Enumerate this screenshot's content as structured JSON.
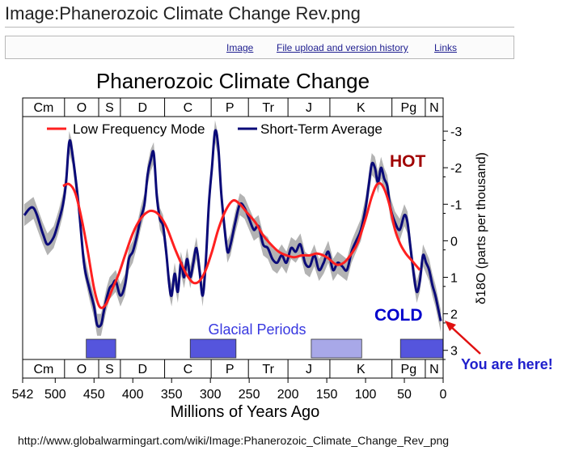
{
  "page": {
    "title": "Image:Phanerozoic Climate Change Rev.png",
    "tabs": [
      {
        "label": "Image"
      },
      {
        "label": "File upload and version history"
      },
      {
        "label": "Links"
      }
    ],
    "source_url": "http://www.globalwarmingart.com/wiki/Image:Phanerozoic_Climate_Change_Rev_png"
  },
  "chart_data": {
    "type": "line",
    "title": "Phanerozoic Climate Change",
    "xlabel": "Millions of Years Ago",
    "ylabel": "δ18O (parts per thousand)",
    "xlim": [
      542,
      0
    ],
    "ylim": [
      -3.4,
      3.25
    ],
    "xticks": [
      542,
      500,
      450,
      400,
      350,
      300,
      250,
      200,
      150,
      100,
      50,
      0
    ],
    "yticks": [
      -3,
      -2,
      -1,
      0,
      1,
      2,
      3
    ],
    "legend": {
      "placement": "top",
      "entries": [
        {
          "name": "Low Frequency Mode",
          "color": "#ff2020"
        },
        {
          "name": "Short-Term Average",
          "color": "#0a0a78"
        }
      ]
    },
    "periods": [
      {
        "label": "Cm",
        "start": 542,
        "end": 488
      },
      {
        "label": "O",
        "start": 488,
        "end": 444
      },
      {
        "label": "S",
        "start": 444,
        "end": 416
      },
      {
        "label": "D",
        "start": 416,
        "end": 359
      },
      {
        "label": "C",
        "start": 359,
        "end": 299
      },
      {
        "label": "P",
        "start": 299,
        "end": 251
      },
      {
        "label": "Tr",
        "start": 251,
        "end": 200
      },
      {
        "label": "J",
        "start": 200,
        "end": 146
      },
      {
        "label": "K",
        "start": 146,
        "end": 66
      },
      {
        "label": "Pg",
        "start": 66,
        "end": 23
      },
      {
        "label": "N",
        "start": 23,
        "end": 0
      }
    ],
    "glacial": {
      "label": "Glacial Periods",
      "periods": [
        {
          "start": 460,
          "end": 422,
          "color": "#5555dd"
        },
        {
          "start": 326,
          "end": 267,
          "color": "#5555dd"
        },
        {
          "start": 170,
          "end": 105,
          "color": "#a8a8e8"
        },
        {
          "start": 55,
          "end": 0,
          "color": "#5555dd"
        }
      ]
    },
    "annotations": {
      "hot": "HOT",
      "cold": "COLD",
      "you_are_here": "You are here!"
    },
    "series": [
      {
        "name": "Low Frequency Mode",
        "color": "#ff2020",
        "x": [
          490,
          482,
          474,
          466,
          458,
          450,
          443,
          435,
          426,
          418,
          410,
          400,
          390,
          380,
          372,
          364,
          356,
          346,
          338,
          330,
          322,
          314,
          306,
          298,
          290,
          281,
          271,
          262,
          252,
          242,
          232,
          222,
          212,
          202,
          192,
          182,
          172,
          162,
          150,
          138,
          128,
          118,
          110,
          100,
          92,
          85,
          78,
          70,
          62,
          55,
          48,
          40,
          30
        ],
        "values": [
          -1.5,
          -1.55,
          -1.3,
          -0.6,
          0.3,
          1.3,
          1.8,
          1.75,
          1.3,
          0.9,
          0.4,
          -0.2,
          -0.6,
          -0.8,
          -0.8,
          -0.65,
          -0.35,
          0.2,
          0.6,
          0.95,
          1.15,
          1.1,
          0.8,
          0.3,
          -0.3,
          -0.8,
          -1.1,
          -1.0,
          -0.75,
          -0.5,
          -0.15,
          0.1,
          0.3,
          0.4,
          0.45,
          0.4,
          0.4,
          0.35,
          0.45,
          0.65,
          0.6,
          0.35,
          0.05,
          -0.6,
          -1.2,
          -1.55,
          -1.5,
          -1.05,
          -0.3,
          0.1,
          0.35,
          0.55,
          0.8
        ]
      },
      {
        "name": "Short-Term Average",
        "color": "#0a0a78",
        "x": [
          540,
          528,
          516,
          510,
          502,
          496,
          490,
          486,
          482,
          478,
          470,
          463,
          456,
          450,
          446,
          441,
          438,
          434,
          430,
          426,
          422,
          416,
          410,
          405,
          400,
          395,
          390,
          385,
          381,
          377,
          373,
          369,
          365,
          361,
          357,
          353,
          350,
          346,
          342,
          338,
          334,
          330,
          326,
          322,
          318,
          314,
          310,
          306,
          302,
          298,
          294,
          290,
          286,
          282,
          278,
          274,
          268,
          262,
          256,
          250,
          244,
          238,
          232,
          226,
          220,
          214,
          208,
          202,
          196,
          190,
          184,
          178,
          172,
          166,
          160,
          154,
          148,
          142,
          136,
          130,
          124,
          118,
          112,
          106,
          100,
          96,
          92,
          88,
          84,
          80,
          76,
          72,
          68,
          62,
          56,
          50,
          46,
          42,
          38,
          34,
          30,
          26,
          22,
          18,
          14,
          10,
          6,
          3
        ],
        "values": [
          -0.7,
          -0.9,
          -0.2,
          0.1,
          -0.1,
          -0.5,
          -1.0,
          -1.6,
          -2.7,
          -2.4,
          -1.0,
          0.6,
          1.3,
          1.8,
          2.3,
          2.3,
          2.0,
          1.6,
          1.3,
          1.2,
          1.1,
          1.5,
          1.2,
          0.5,
          0.3,
          -0.1,
          -0.6,
          -1.0,
          -1.8,
          -2.2,
          -2.4,
          -1.2,
          -0.6,
          -0.4,
          0.3,
          1.2,
          1.5,
          0.9,
          1.4,
          0.6,
          1.0,
          0.5,
          1.0,
          0.6,
          0.2,
          0.8,
          1.5,
          0.6,
          -1.0,
          -2.0,
          -3.0,
          -2.6,
          -1.3,
          -0.4,
          0.3,
          0.1,
          -0.5,
          -1.0,
          -0.9,
          -0.6,
          -0.3,
          -0.4,
          0.1,
          0.2,
          0.5,
          0.6,
          0.4,
          0.6,
          0.2,
          0.3,
          0.1,
          0.6,
          0.7,
          0.4,
          0.8,
          0.6,
          0.3,
          0.8,
          0.6,
          0.7,
          0.8,
          0.3,
          0.0,
          -0.3,
          -0.9,
          -1.5,
          -2.1,
          -2.0,
          -1.6,
          -2.0,
          -1.7,
          -1.5,
          -0.9,
          -0.5,
          -0.3,
          -0.7,
          -0.5,
          0.2,
          0.9,
          1.4,
          1.1,
          0.4,
          0.6,
          0.8,
          1.2,
          1.5,
          1.9,
          2.2
        ]
      }
    ]
  }
}
